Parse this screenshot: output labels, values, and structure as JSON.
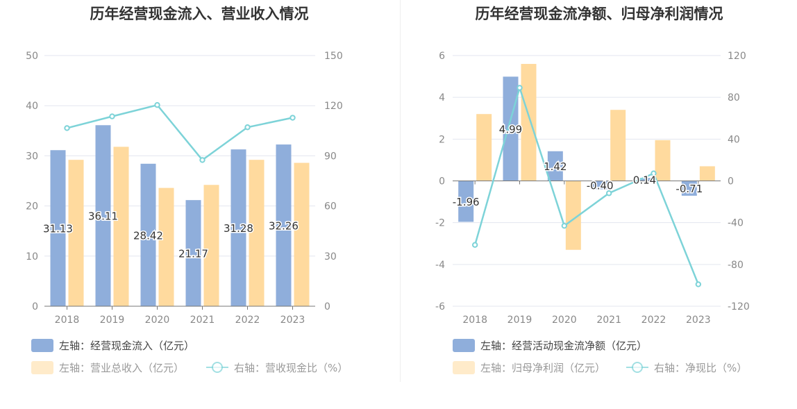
{
  "charts": [
    {
      "title": "历年经营现金流入、营业收入情况",
      "chart_data": {
        "type": "bar+line",
        "title": "历年经营现金流入、营业收入情况",
        "categories": [
          "2018",
          "2019",
          "2020",
          "2021",
          "2022",
          "2023"
        ],
        "left_axis": {
          "min": 0,
          "max": 50,
          "ticks": [
            0,
            10,
            20,
            30,
            40,
            50
          ]
        },
        "right_axis": {
          "min": 0,
          "max": 150,
          "ticks": [
            0,
            30,
            60,
            90,
            120,
            150
          ]
        },
        "series": [
          {
            "name": "左轴：经营现金流入（亿元）",
            "type": "bar",
            "axis": "left",
            "color": "#8FAEDB",
            "values": [
              31.13,
              36.11,
              28.42,
              21.17,
              31.28,
              32.26
            ],
            "labels": [
              "31.13",
              "36.11",
              "28.42",
              "21.17",
              "31.28",
              "32.26"
            ]
          },
          {
            "name": "左轴：营业总收入（亿元）",
            "type": "bar",
            "axis": "left",
            "color": "#FFDA9E",
            "values": [
              29.2,
              31.8,
              23.6,
              24.2,
              29.2,
              28.6
            ]
          },
          {
            "name": "右轴：营收现金比（%）",
            "type": "line",
            "axis": "right",
            "color": "#7DD3D8",
            "values": [
              106.6,
              113.6,
              120.4,
              87.5,
              107.1,
              112.8
            ]
          }
        ]
      }
    },
    {
      "title": "历年经营现金流净额、归母净利润情况",
      "chart_data": {
        "type": "bar+line",
        "title": "历年经营现金流净额、归母净利润情况",
        "categories": [
          "2018",
          "2019",
          "2020",
          "2021",
          "2022",
          "2023"
        ],
        "left_axis": {
          "min": -6,
          "max": 6,
          "ticks": [
            -6,
            -4,
            -2,
            0,
            2,
            4,
            6
          ]
        },
        "right_axis": {
          "min": -120,
          "max": 120,
          "ticks": [
            -120,
            -80,
            -40,
            0,
            40,
            80,
            120
          ]
        },
        "series": [
          {
            "name": "左轴：经营活动现金流净额（亿元）",
            "type": "bar",
            "axis": "left",
            "color": "#8FAEDB",
            "values": [
              -1.96,
              4.99,
              1.42,
              -0.4,
              0.14,
              -0.71
            ],
            "labels": [
              "-1.96",
              "4.99",
              "1.42",
              "-0.40",
              "0.14",
              "-0.71"
            ]
          },
          {
            "name": "左轴：归母净利润（亿元）",
            "type": "bar",
            "axis": "left",
            "color": "#FFDA9E",
            "values": [
              3.2,
              5.6,
              -3.3,
              3.4,
              1.95,
              0.7
            ]
          },
          {
            "name": "右轴：净现比（%）",
            "type": "line",
            "axis": "right",
            "color": "#7DD3D8",
            "values": [
              -61.3,
              89.1,
              -43.0,
              -11.8,
              7.2,
              -99.0
            ]
          }
        ]
      }
    }
  ]
}
